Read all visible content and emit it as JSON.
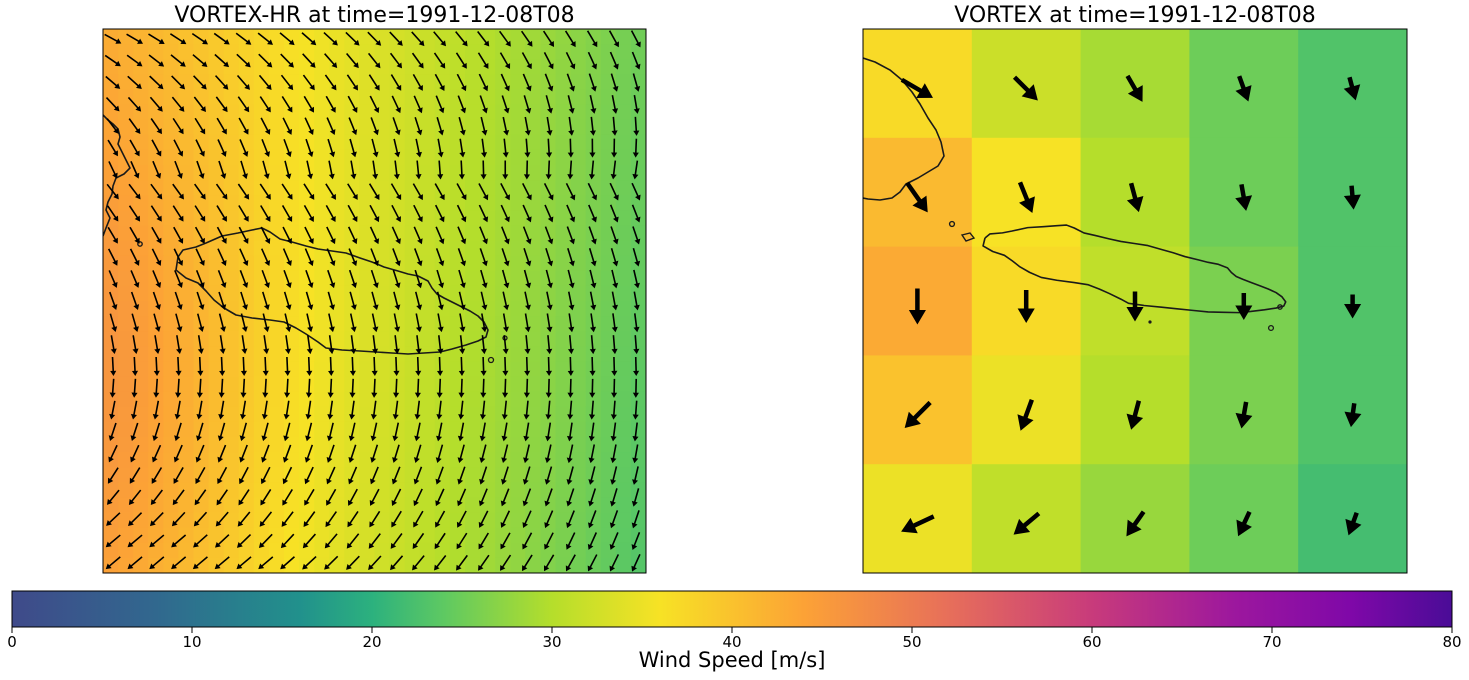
{
  "panels": {
    "left_title": "VORTEX-HR at time=1991-12-08T08",
    "right_title": "VORTEX at time=1991-12-08T08"
  },
  "colorbar": {
    "label": "Wind Speed [m/s]",
    "ticks": [
      "0",
      "10",
      "20",
      "30",
      "40",
      "50",
      "60",
      "70",
      "80"
    ],
    "range": [
      0,
      80
    ]
  },
  "chart_data": [
    {
      "type": "heatmap",
      "title": "VORTEX-HR at time=1991-12-08T08",
      "grid": "27x27 quiver + smooth field",
      "value_range_approx": [
        24,
        44
      ],
      "peak_location": "left edge, lower-middle",
      "min_location": "right edge, upper"
    },
    {
      "type": "heatmap",
      "title": "VORTEX at time=1991-12-08T08",
      "cols": 5,
      "rows": 5,
      "values": [
        [
          37,
          32,
          29,
          25,
          23
        ],
        [
          41,
          36,
          30,
          25,
          23
        ],
        [
          43,
          37,
          31,
          26,
          23
        ],
        [
          40,
          35,
          30,
          26,
          23
        ],
        [
          35,
          31,
          28,
          25,
          22
        ]
      ],
      "arrow_angles_deg_from_east_cw": [
        [
          30,
          45,
          60,
          70,
          75
        ],
        [
          55,
          68,
          75,
          80,
          85
        ],
        [
          90,
          90,
          90,
          90,
          90
        ],
        [
          135,
          110,
          105,
          100,
          98
        ],
        [
          155,
          140,
          125,
          115,
          110
        ]
      ]
    }
  ]
}
